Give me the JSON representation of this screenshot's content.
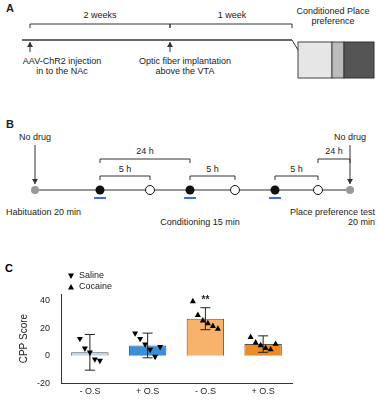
{
  "panel_a": {
    "label": "A",
    "intervals": [
      "2 weeks",
      "1 week"
    ],
    "steps": [
      "AAV-ChR2 injection in to the NAc",
      "Optic fiber implantation above the VTA",
      "Conditioned Place preference"
    ]
  },
  "panel_b": {
    "label": "B",
    "no_drug": [
      "No drug",
      "No drug"
    ],
    "intervals_24h": [
      "24 h",
      "24 h"
    ],
    "intervals_5h": [
      "5 h",
      "5 h",
      "5 h"
    ],
    "phases": [
      "Habituation 20 min",
      "Conditioning 15 min",
      "Place preference test 20 min"
    ]
  },
  "chart_data": {
    "type": "bar",
    "panel_label": "C",
    "y_label": "CPP Score",
    "categories": [
      "- O.S",
      "+ O.S",
      "- O.S",
      "+ O.S"
    ],
    "values": [
      2.5,
      7.5,
      27,
      8.5
    ],
    "errors": [
      13,
      9,
      8,
      6
    ],
    "colors": [
      "#bcd9f0",
      "#3b8fd9",
      "#f7b26b",
      "#f08a24"
    ],
    "ylim": [
      -20,
      45
    ],
    "yticks": [
      -20,
      0,
      20,
      40
    ],
    "grid": false,
    "legend": "top-left",
    "series": [
      {
        "name": "Saline",
        "type": "scatter",
        "marker": "triangle-down",
        "color": "#000000",
        "values": [
          [
            12,
            5,
            2,
            -3,
            -4
          ],
          [
            16,
            12,
            8,
            4,
            -1,
            6
          ],
          [],
          []
        ]
      },
      {
        "name": "Cocaine",
        "type": "scatter",
        "marker": "triangle-up",
        "color": "#000000",
        "values": [
          [],
          [],
          [
            40,
            30,
            26,
            24,
            22,
            20
          ],
          [
            14,
            10,
            8,
            6,
            5,
            9
          ]
        ]
      }
    ],
    "annotations": [
      {
        "text": "**",
        "category_index": 2
      }
    ]
  }
}
